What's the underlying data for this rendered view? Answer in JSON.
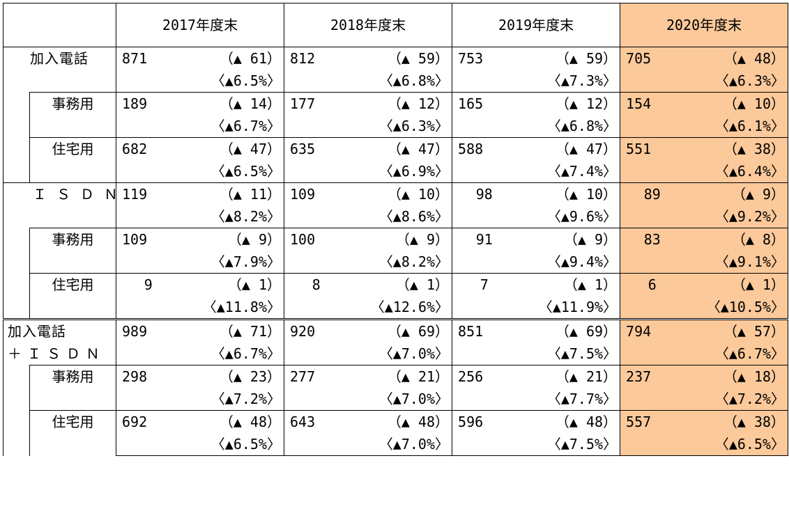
{
  "header": {
    "blank": "",
    "years": [
      "2017年度末",
      "2018年度末",
      "2019年度末",
      "2020年度末"
    ]
  },
  "rows": [
    {
      "label": "加入電話",
      "values": [
        {
          "count": "871",
          "change": "（▲ 61）",
          "pct": "〈▲6.5%〉"
        },
        {
          "count": "812",
          "change": "（▲ 59）",
          "pct": "〈▲6.8%〉"
        },
        {
          "count": "753",
          "change": "（▲ 59）",
          "pct": "〈▲7.3%〉"
        },
        {
          "count": "705",
          "change": "（▲ 48）",
          "pct": "〈▲6.3%〉"
        }
      ]
    },
    {
      "label": "事務用",
      "values": [
        {
          "count": "189",
          "change": "（▲ 14）",
          "pct": "〈▲6.7%〉"
        },
        {
          "count": "177",
          "change": "（▲ 12）",
          "pct": "〈▲6.3%〉"
        },
        {
          "count": "165",
          "change": "（▲ 12）",
          "pct": "〈▲6.8%〉"
        },
        {
          "count": "154",
          "change": "（▲ 10）",
          "pct": "〈▲6.1%〉"
        }
      ]
    },
    {
      "label": "住宅用",
      "values": [
        {
          "count": "682",
          "change": "（▲ 47）",
          "pct": "〈▲6.5%〉"
        },
        {
          "count": "635",
          "change": "（▲ 47）",
          "pct": "〈▲6.9%〉"
        },
        {
          "count": "588",
          "change": "（▲ 47）",
          "pct": "〈▲7.4%〉"
        },
        {
          "count": "551",
          "change": "（▲ 38）",
          "pct": "〈▲6.4%〉"
        }
      ]
    },
    {
      "label": "ＩＳＤＮ",
      "values": [
        {
          "count": "119",
          "change": "（▲ 11）",
          "pct": "〈▲8.2%〉"
        },
        {
          "count": "109",
          "change": "（▲ 10）",
          "pct": "〈▲8.6%〉"
        },
        {
          "count": "98",
          "change": "（▲ 10）",
          "pct": "〈▲9.6%〉"
        },
        {
          "count": "89",
          "change": "（▲ 9）",
          "pct": "〈▲9.2%〉"
        }
      ]
    },
    {
      "label": "事務用",
      "values": [
        {
          "count": "109",
          "change": "（▲ 9）",
          "pct": "〈▲7.9%〉"
        },
        {
          "count": "100",
          "change": "（▲ 9）",
          "pct": "〈▲8.2%〉"
        },
        {
          "count": "91",
          "change": "（▲ 9）",
          "pct": "〈▲9.4%〉"
        },
        {
          "count": "83",
          "change": "（▲ 8）",
          "pct": "〈▲9.1%〉"
        }
      ]
    },
    {
      "label": "住宅用",
      "values": [
        {
          "count": "9",
          "change": "（▲ 1）",
          "pct": "〈▲11.8%〉"
        },
        {
          "count": "8",
          "change": "（▲ 1）",
          "pct": "〈▲12.6%〉"
        },
        {
          "count": "7",
          "change": "（▲ 1）",
          "pct": "〈▲11.9%〉"
        },
        {
          "count": "6",
          "change": "（▲ 1）",
          "pct": "〈▲10.5%〉"
        }
      ]
    },
    {
      "label": "加入電話",
      "label2": "＋ＩＳＤＮ",
      "values": [
        {
          "count": "989",
          "change": "（▲ 71）",
          "pct": "〈▲6.7%〉"
        },
        {
          "count": "920",
          "change": "（▲ 69）",
          "pct": "〈▲7.0%〉"
        },
        {
          "count": "851",
          "change": "（▲ 69）",
          "pct": "〈▲7.5%〉"
        },
        {
          "count": "794",
          "change": "（▲ 57）",
          "pct": "〈▲6.7%〉"
        }
      ]
    },
    {
      "label": "事務用",
      "values": [
        {
          "count": "298",
          "change": "（▲ 23）",
          "pct": "〈▲7.2%〉"
        },
        {
          "count": "277",
          "change": "（▲ 21）",
          "pct": "〈▲7.0%〉"
        },
        {
          "count": "256",
          "change": "（▲ 21）",
          "pct": "〈▲7.7%〉"
        },
        {
          "count": "237",
          "change": "（▲ 18）",
          "pct": "〈▲7.2%〉"
        }
      ]
    },
    {
      "label": "住宅用",
      "values": [
        {
          "count": "692",
          "change": "（▲ 48）",
          "pct": "〈▲6.5%〉"
        },
        {
          "count": "643",
          "change": "（▲ 48）",
          "pct": "〈▲7.0%〉"
        },
        {
          "count": "596",
          "change": "（▲ 48）",
          "pct": "〈▲7.5%〉"
        },
        {
          "count": "557",
          "change": "（▲ 38）",
          "pct": "〈▲6.5%〉"
        }
      ]
    }
  ],
  "colors": {
    "highlight": "#fbc99a",
    "border": "#000000"
  }
}
